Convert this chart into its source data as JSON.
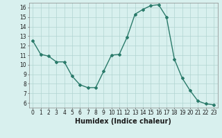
{
  "x": [
    0,
    1,
    2,
    3,
    4,
    5,
    6,
    7,
    8,
    9,
    10,
    11,
    12,
    13,
    14,
    15,
    16,
    17,
    18,
    19,
    20,
    21,
    22,
    23
  ],
  "y": [
    12.5,
    11.1,
    10.9,
    10.3,
    10.3,
    8.8,
    7.9,
    7.6,
    7.6,
    9.3,
    11.0,
    11.1,
    12.9,
    15.3,
    15.8,
    16.2,
    16.3,
    15.0,
    10.6,
    8.6,
    7.3,
    6.2,
    5.9,
    5.8
  ],
  "line_color": "#2a7a6a",
  "marker": "D",
  "marker_size": 2,
  "line_width": 1.0,
  "bg_color": "#d8f0ee",
  "grid_color": "#b0d4d0",
  "xlabel": "Humidex (Indice chaleur)",
  "xlim": [
    -0.5,
    23.5
  ],
  "ylim": [
    5.5,
    16.5
  ],
  "yticks": [
    6,
    7,
    8,
    9,
    10,
    11,
    12,
    13,
    14,
    15,
    16
  ],
  "xticks": [
    0,
    1,
    2,
    3,
    4,
    5,
    6,
    7,
    8,
    9,
    10,
    11,
    12,
    13,
    14,
    15,
    16,
    17,
    18,
    19,
    20,
    21,
    22,
    23
  ],
  "tick_fontsize": 5.5,
  "xlabel_fontsize": 7
}
